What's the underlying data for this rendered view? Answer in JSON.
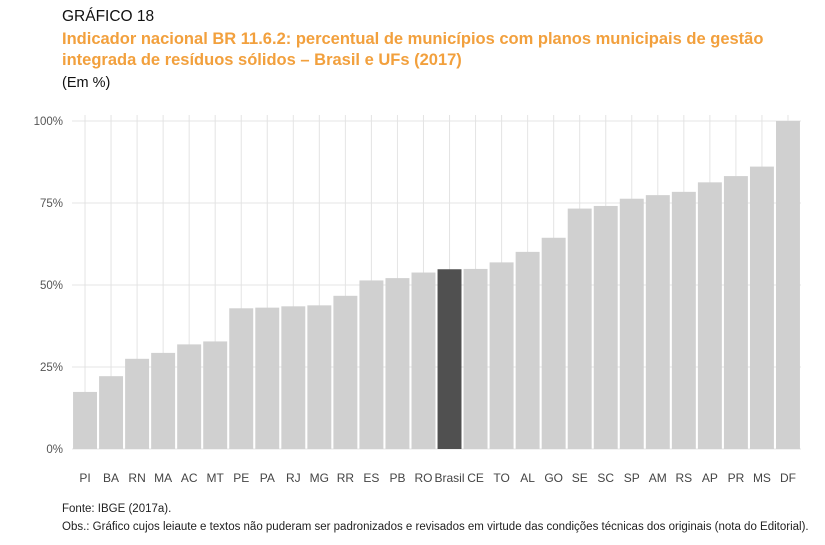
{
  "figure": {
    "label": "GRÁFICO 18",
    "title_line_1": "Indicador nacional BR 11.6.2: percentual de municípios com planos municipais de gestão",
    "title_line_2": "integrada de resíduos sólidos – Brasil e UFs (2017)",
    "unit": "(Em %)",
    "source": "Fonte: IBGE (2017a).",
    "note": "Obs.: Gráfico cujos leiaute e textos não puderam ser padronizados e revisados em virtude das condições técnicas dos originais (nota do Editorial)."
  },
  "colors": {
    "bar": "#d0d0d0",
    "highlight": "#505050",
    "grid": "#e4e4e4",
    "title": "#f2a03d"
  },
  "chart_data": {
    "type": "bar",
    "title": "Indicador nacional BR 11.6.2: percentual de municípios com planos municipais de gestão integrada de resíduos sólidos – Brasil e UFs (2017)",
    "xlabel": "",
    "ylabel": "",
    "ylim": [
      0,
      100
    ],
    "y_ticks": [
      0,
      25,
      50,
      75,
      100
    ],
    "y_tick_labels": [
      "0%",
      "25%",
      "50%",
      "75%",
      "100%"
    ],
    "grid": true,
    "legend": "none",
    "highlight_category": "Brasil",
    "categories": [
      "PI",
      "BA",
      "RN",
      "MA",
      "AC",
      "MT",
      "PE",
      "PA",
      "RJ",
      "MG",
      "RR",
      "ES",
      "PB",
      "RO",
      "Brasil",
      "CE",
      "TO",
      "AL",
      "GO",
      "SE",
      "SC",
      "SP",
      "AM",
      "RS",
      "AP",
      "PR",
      "MS",
      "DF"
    ],
    "values": [
      17.4,
      22.2,
      27.5,
      29.3,
      31.9,
      32.8,
      42.9,
      43.1,
      43.5,
      43.8,
      46.7,
      51.4,
      52.1,
      53.8,
      54.8,
      54.9,
      56.9,
      60.1,
      64.4,
      73.3,
      74.1,
      76.3,
      77.4,
      78.4,
      81.3,
      83.2,
      86.1,
      100
    ]
  }
}
